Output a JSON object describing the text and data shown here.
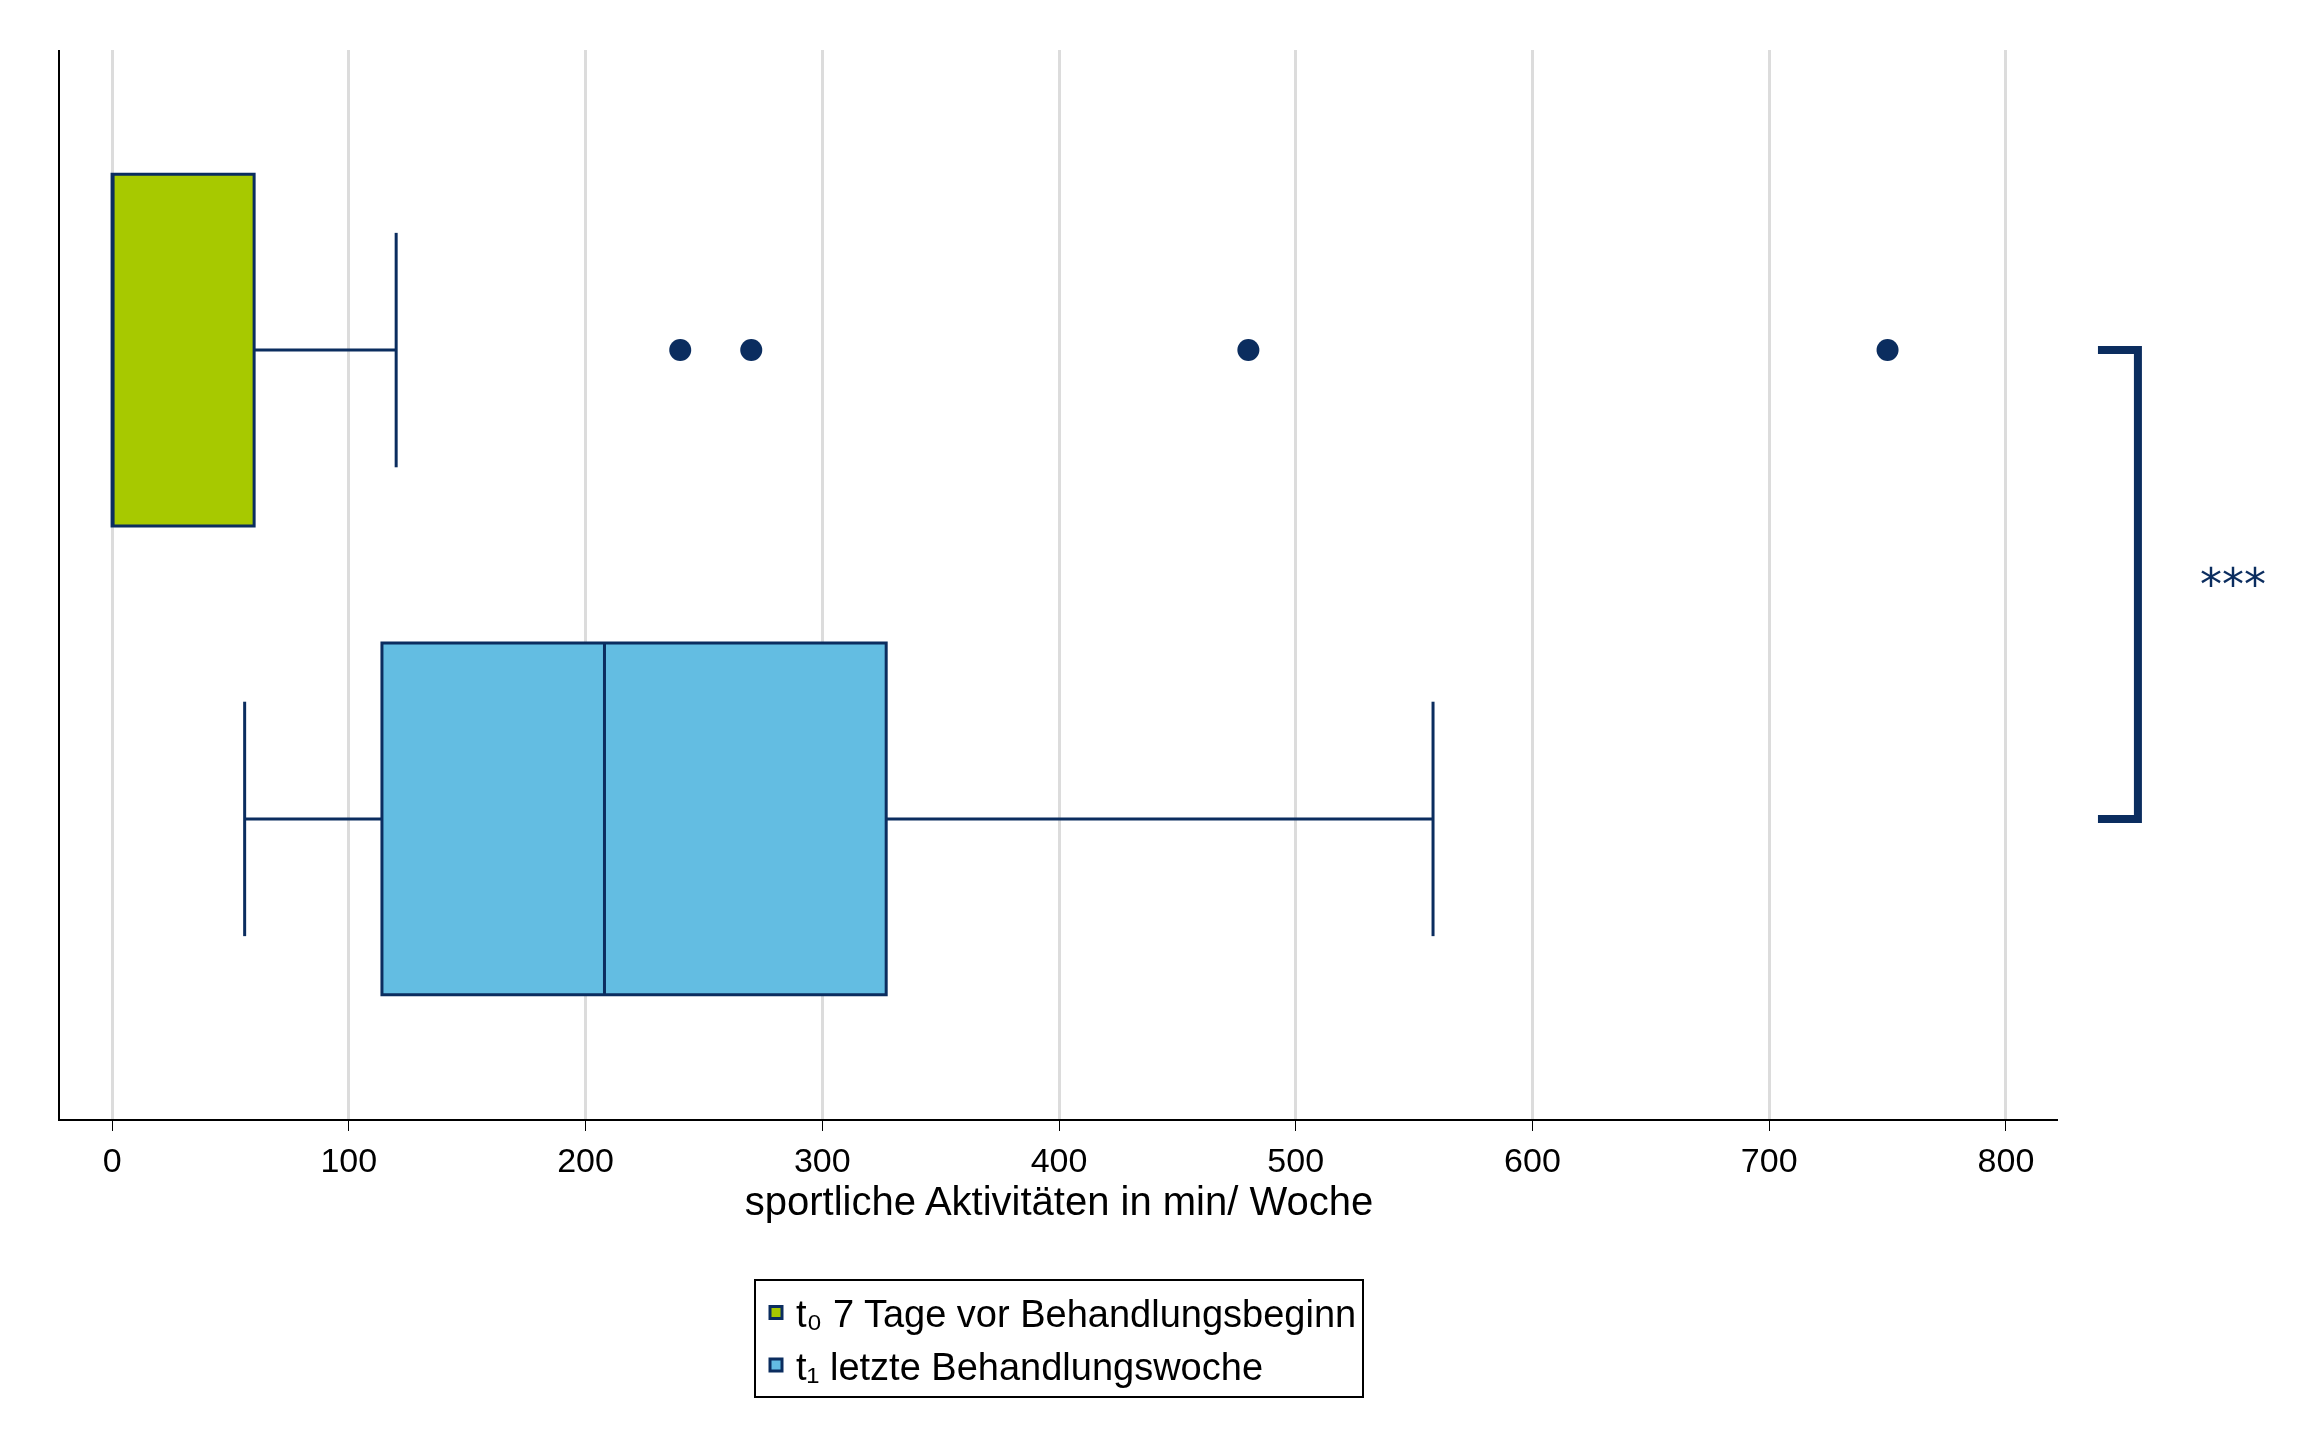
{
  "chart_data": {
    "type": "box",
    "orientation": "horizontal",
    "xlabel": "sportliche Aktivitäten in min/ Woche",
    "categories": [
      null,
      null
    ],
    "series": [
      {
        "name": "t₀ 7 Tage vor Behandlungsbeginn",
        "color": "#a7c900",
        "boxes": [
          {
            "low": 0,
            "q1": 0,
            "median": 0,
            "q3": 60,
            "high": 120,
            "outliers": [
              240,
              270,
              480,
              750
            ]
          },
          null
        ]
      },
      {
        "name": "t₁ letzte Behandlungswoche",
        "color": "#63bde2",
        "boxes": [
          null,
          {
            "low": 56,
            "q1": 114,
            "median": 208,
            "q3": 327,
            "high": 558
          }
        ]
      }
    ],
    "xlim": [
      -22,
      822
    ],
    "xticks": [
      0,
      100,
      200,
      300,
      400,
      500,
      600,
      700,
      800
    ],
    "annotations": [
      "***"
    ],
    "grid": "x",
    "legend": "bottom",
    "marker": "circle"
  }
}
